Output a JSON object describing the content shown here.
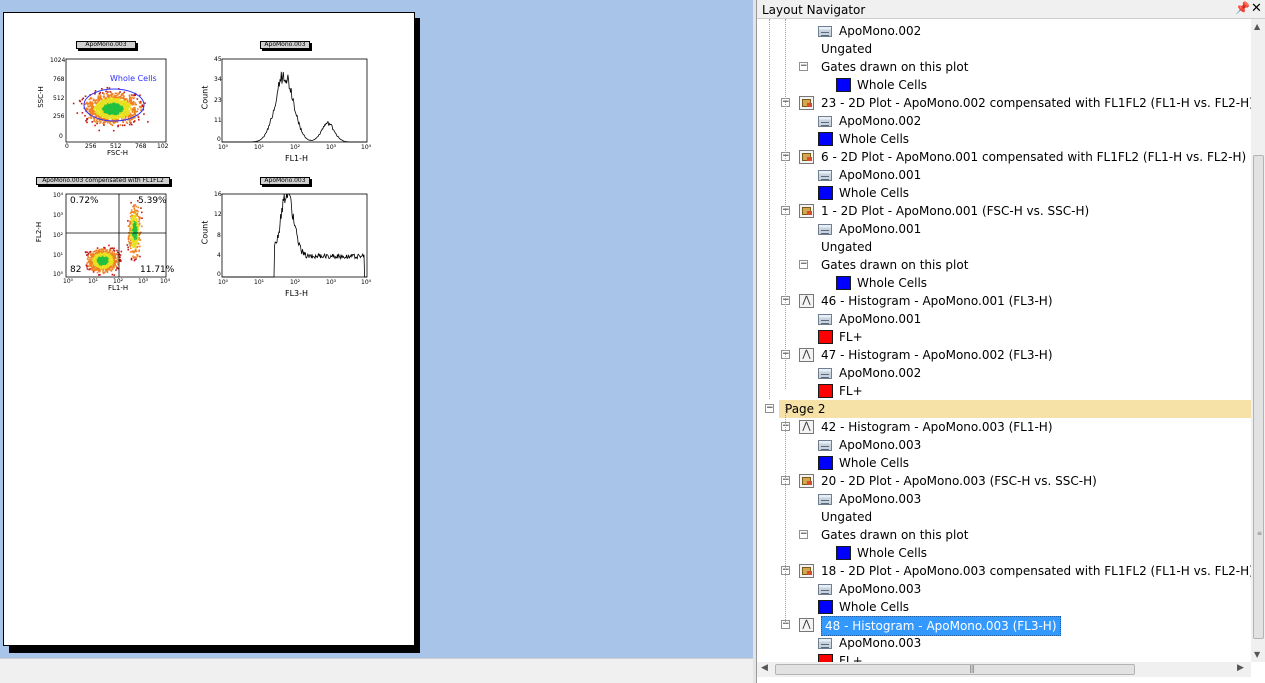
{
  "navigator": {
    "title": "Layout Navigator",
    "pin_icon": "pin-icon",
    "close_icon": "close-icon",
    "rows": [
      {
        "type": "data",
        "text": "ApoMono.002"
      },
      {
        "type": "plain",
        "text": "Ungated"
      },
      {
        "type": "group",
        "text": "Gates drawn on this plot"
      },
      {
        "type": "gate",
        "text": "Whole Cells",
        "color": "#0000ff"
      },
      {
        "type": "plot2d",
        "text": "23 - 2D Plot - ApoMono.002 compensated with FL1FL2 (FL1-H vs. FL2-H)"
      },
      {
        "type": "data",
        "text": "ApoMono.002"
      },
      {
        "type": "gate",
        "text": "Whole Cells",
        "color": "#0000ff"
      },
      {
        "type": "plot2d",
        "text": "6 - 2D Plot - ApoMono.001 compensated with FL1FL2 (FL1-H vs. FL2-H)"
      },
      {
        "type": "data",
        "text": "ApoMono.001"
      },
      {
        "type": "gate",
        "text": "Whole Cells",
        "color": "#0000ff"
      },
      {
        "type": "plot2d",
        "text": "1 - 2D Plot - ApoMono.001 (FSC-H vs. SSC-H)"
      },
      {
        "type": "data",
        "text": "ApoMono.001"
      },
      {
        "type": "plain",
        "text": "Ungated"
      },
      {
        "type": "group",
        "text": "Gates drawn on this plot"
      },
      {
        "type": "gate",
        "text": "Whole Cells",
        "color": "#0000ff"
      },
      {
        "type": "hist",
        "text": "46 - Histogram - ApoMono.001 (FL3-H)"
      },
      {
        "type": "data",
        "text": "ApoMono.001"
      },
      {
        "type": "gate",
        "text": "FL+",
        "color": "#ff0000"
      },
      {
        "type": "hist",
        "text": "47 - Histogram - ApoMono.002 (FL3-H)"
      },
      {
        "type": "data",
        "text": "ApoMono.002"
      },
      {
        "type": "gate",
        "text": "FL+",
        "color": "#ff0000"
      },
      {
        "type": "page",
        "text": "Page 2"
      },
      {
        "type": "hist",
        "text": "42 - Histogram - ApoMono.003 (FL1-H)"
      },
      {
        "type": "data",
        "text": "ApoMono.003"
      },
      {
        "type": "gate",
        "text": "Whole Cells",
        "color": "#0000ff"
      },
      {
        "type": "plot2d",
        "text": "20 - 2D Plot - ApoMono.003 (FSC-H vs. SSC-H)"
      },
      {
        "type": "data",
        "text": "ApoMono.003"
      },
      {
        "type": "plain",
        "text": "Ungated"
      },
      {
        "type": "group",
        "text": "Gates drawn on this plot"
      },
      {
        "type": "gate",
        "text": "Whole Cells",
        "color": "#0000ff"
      },
      {
        "type": "plot2d",
        "text": "18 - 2D Plot - ApoMono.003 compensated with FL1FL2 (FL1-H vs. FL2-H)"
      },
      {
        "type": "data",
        "text": "ApoMono.003"
      },
      {
        "type": "gate",
        "text": "Whole Cells",
        "color": "#0000ff"
      },
      {
        "type": "hist",
        "text": "48 - Histogram - ApoMono.003 (FL3-H)",
        "selected": true
      },
      {
        "type": "data",
        "text": "ApoMono.003"
      },
      {
        "type": "gate",
        "text": "FL+",
        "color": "#ff0000"
      }
    ]
  },
  "layout": {
    "plots": {
      "p1": {
        "title": "ApoMono.003",
        "xlabel": "FSC-H",
        "ylabel": "SSC-H",
        "gate_label": "Whole Cells",
        "xticks": [
          "0",
          "256",
          "512",
          "768",
          "102"
        ],
        "yticks": [
          "1024",
          "768",
          "512",
          "256",
          "0"
        ]
      },
      "p2": {
        "title": "ApoMono.003",
        "xlabel": "FL1-H",
        "ylabel": "Count",
        "xticks": [
          "10⁰",
          "10¹",
          "10²",
          "10³",
          "10⁴"
        ],
        "yticks": [
          "45",
          "34",
          "23",
          "11",
          "0"
        ]
      },
      "p3": {
        "title": "ApoMono.003 compensated with FL1FL2",
        "xlabel": "FL1-H",
        "ylabel": "FL2-H",
        "xticks": [
          "10⁰",
          "10¹",
          "10²",
          "10³",
          "10⁴"
        ],
        "yticks": [
          "10⁴",
          "10³",
          "10²",
          "10¹",
          "10⁰"
        ],
        "q_ul": "0.72%",
        "q_ur": "5.39%",
        "q_ll": "82",
        "q_lr": "11.71%"
      },
      "p4": {
        "title": "ApoMono.003",
        "xlabel": "FL3-H",
        "ylabel": "Count",
        "xticks": [
          "10⁰",
          "10¹",
          "10²",
          "10³",
          "10⁴"
        ],
        "yticks": [
          "16",
          "12",
          "8",
          "4",
          "0"
        ]
      }
    }
  }
}
